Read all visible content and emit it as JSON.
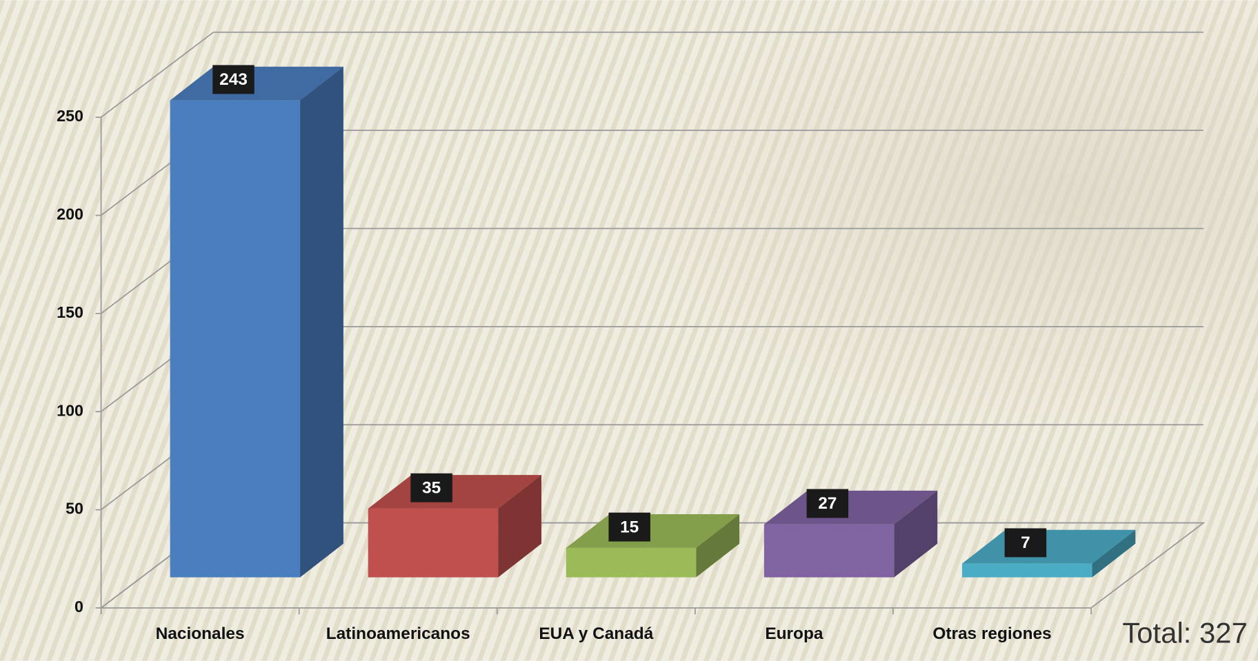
{
  "chart_data": {
    "type": "bar3d",
    "categories": [
      "Nacionales",
      "Latinoamericanos",
      "EUA y Canadá",
      "Europa",
      "Otras regiones"
    ],
    "values": [
      243,
      35,
      15,
      27,
      7
    ],
    "colors": [
      "#4a7ebf",
      "#c0504d",
      "#9bbb59",
      "#8064a2",
      "#4bacc6"
    ],
    "ylim": [
      0,
      250
    ],
    "yticks": [
      0,
      50,
      100,
      150,
      200,
      250
    ],
    "grid": true,
    "annotation": "Total: 327"
  }
}
